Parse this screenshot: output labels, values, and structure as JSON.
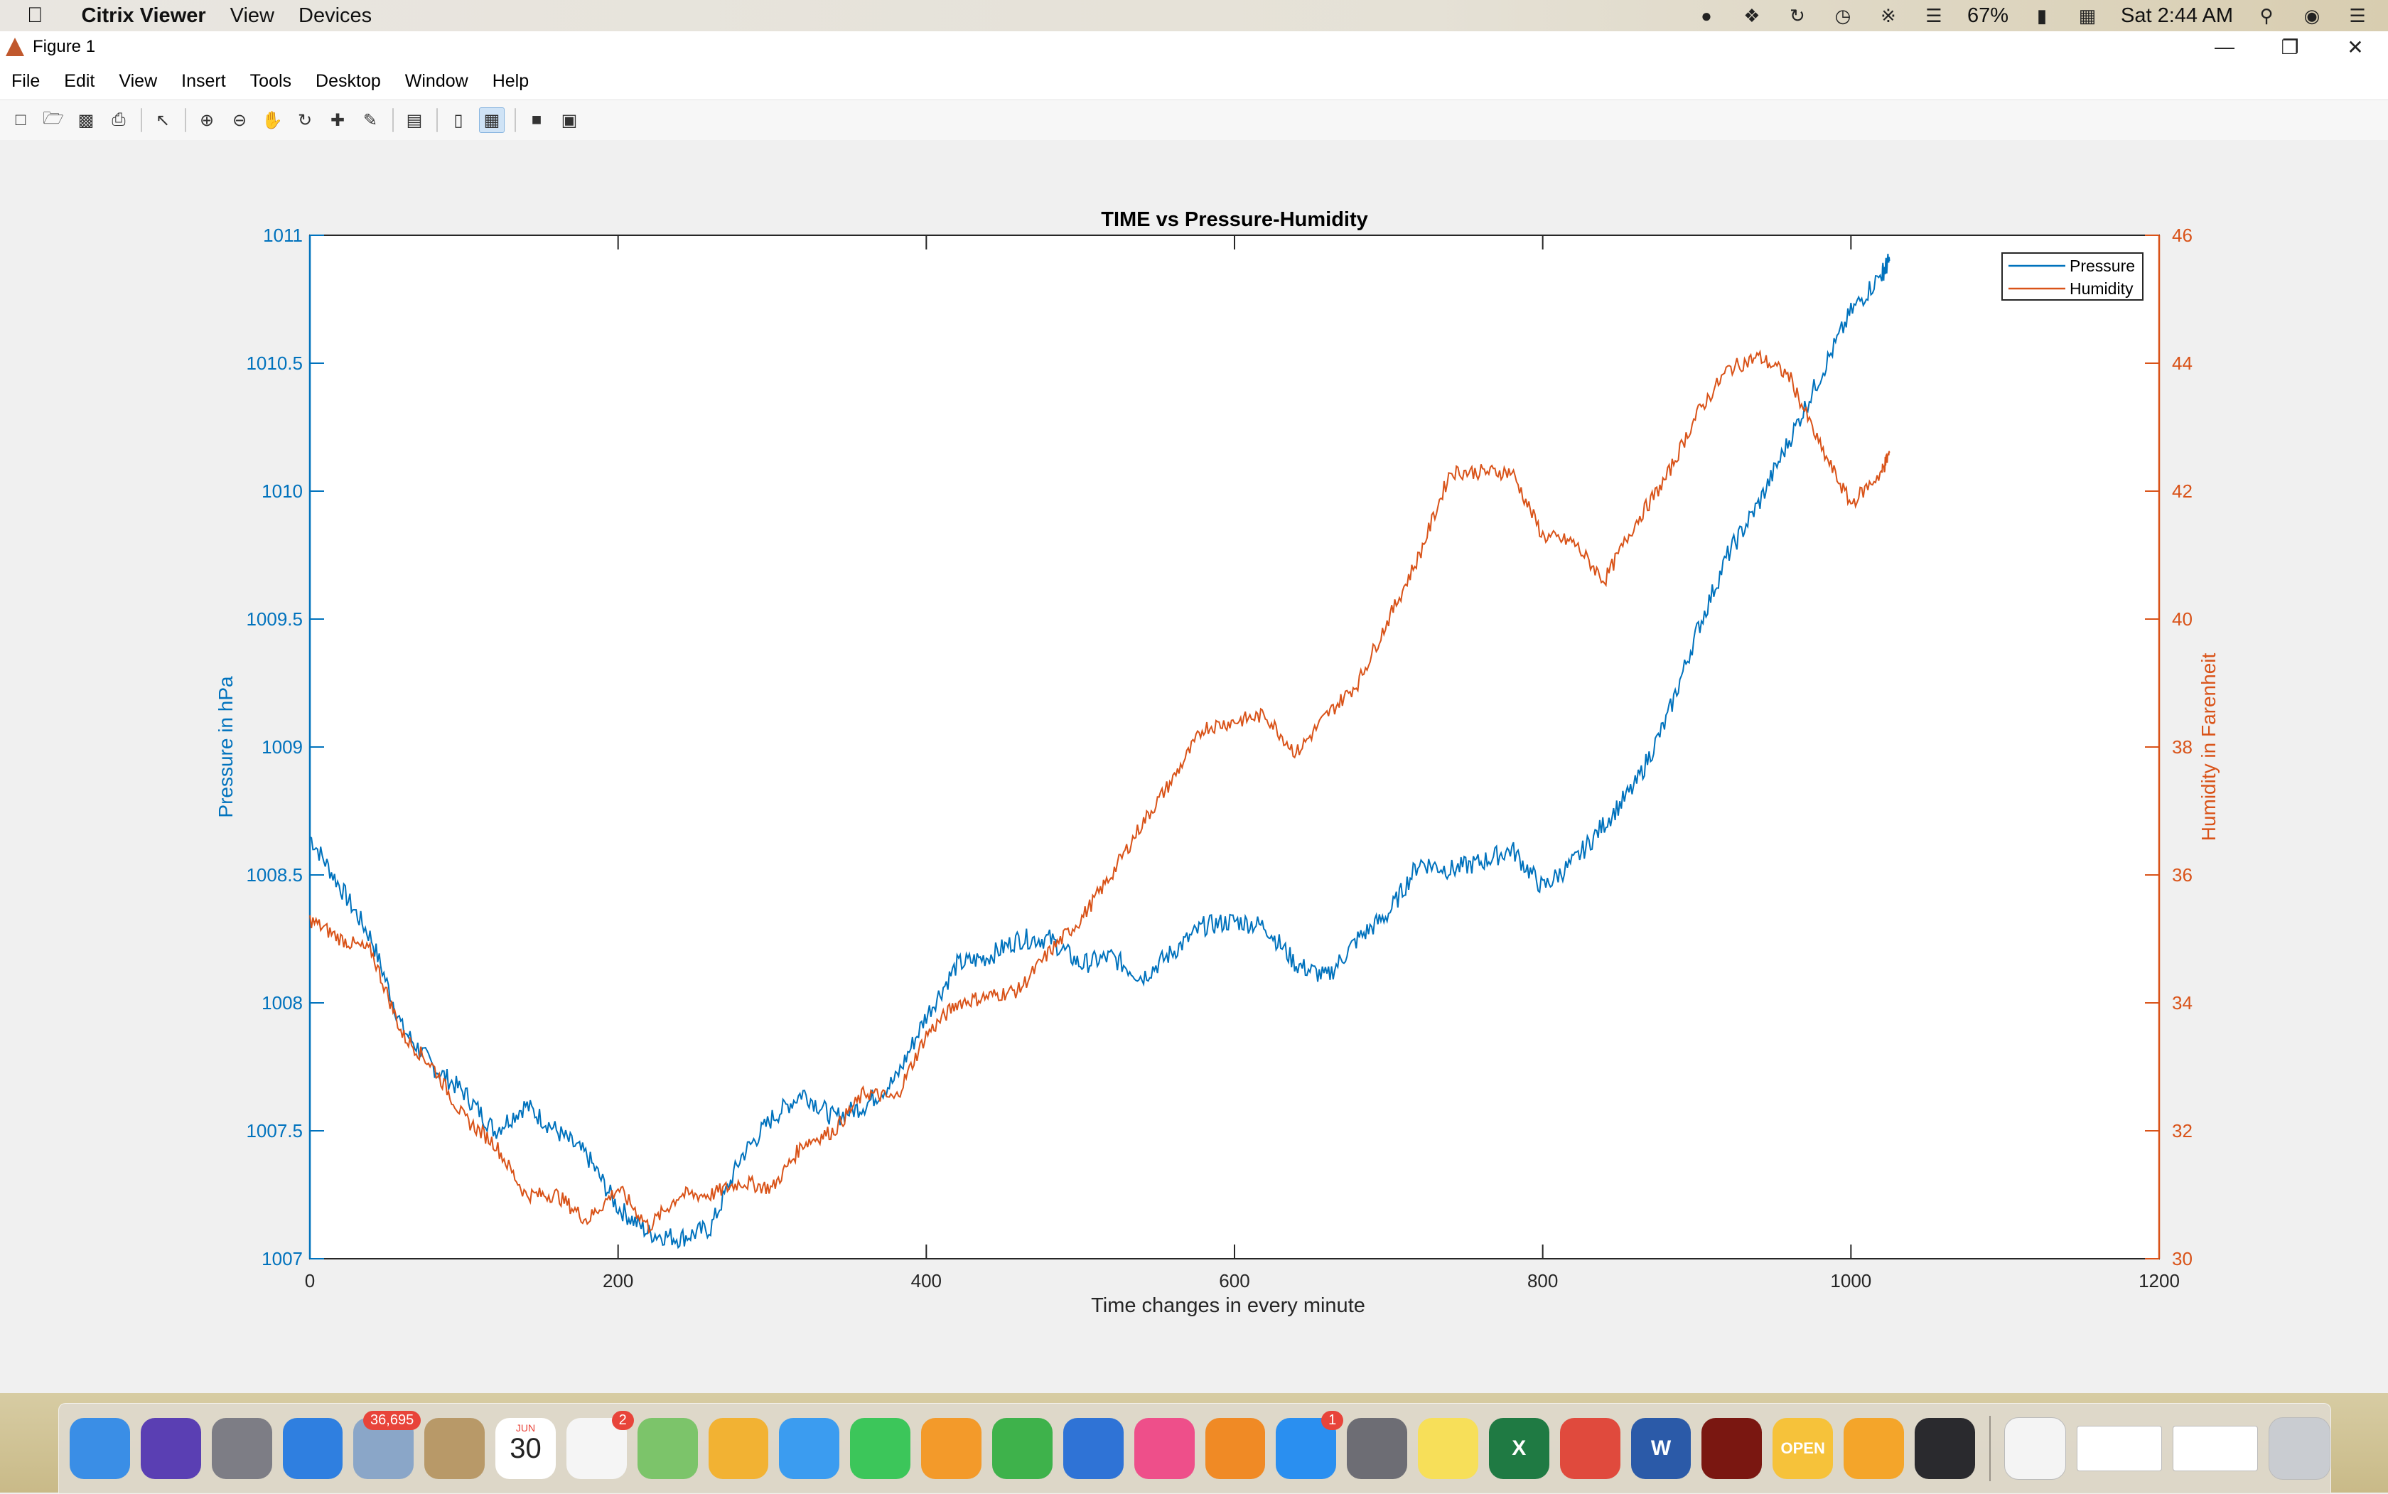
{
  "menubar": {
    "apple": "",
    "app_name": "Citrix Viewer",
    "items": [
      "View",
      "Devices"
    ],
    "battery": "67%",
    "clock": "Sat 2:44 AM",
    "status_icons": [
      "open-icon",
      "dropbox-icon",
      "swirl-icon",
      "time-machine-icon",
      "bluetooth-icon",
      "wifi-icon",
      "battery-icon",
      "calendar-icon",
      "search-icon",
      "siri-icon",
      "list-icon"
    ]
  },
  "window": {
    "title": "Figure 1",
    "controls": [
      "minimize",
      "restore",
      "close"
    ]
  },
  "figure_menu": [
    "File",
    "Edit",
    "View",
    "Insert",
    "Tools",
    "Desktop",
    "Window",
    "Help"
  ],
  "toolbar": [
    "new-figure-icon",
    "open-icon",
    "save-icon",
    "print-icon",
    "pointer-icon",
    "zoom-in-icon",
    "zoom-out-icon",
    "pan-icon",
    "rotate-icon",
    "data-cursor-icon",
    "brush-icon",
    "link-plot-icon",
    "colorbar-icon",
    "legend-icon",
    "hide-plot-tools-icon",
    "show-plot-tools-icon"
  ],
  "chart_data": {
    "type": "line",
    "title": "TIME vs Pressure-Humidity",
    "xlabel": "Time changes in every minute",
    "ylabel_left": "Pressure in hPa",
    "ylabel_right": "Humidity in Farenheit",
    "xlim": [
      0,
      1200
    ],
    "ylim_left": [
      1007,
      1011
    ],
    "ylim_right": [
      30,
      46
    ],
    "xticks": [
      "0",
      "200",
      "400",
      "600",
      "800",
      "1000",
      "1200"
    ],
    "yticks_left": [
      "1007",
      "1007.5",
      "1008",
      "1008.5",
      "1009",
      "1009.5",
      "1010",
      "1010.5",
      "1011"
    ],
    "yticks_right": [
      "30",
      "32",
      "34",
      "36",
      "38",
      "40",
      "42",
      "44",
      "46"
    ],
    "legend_position": "top-right",
    "colors": {
      "pressure": "#0072bd",
      "humidity": "#d95319"
    },
    "series": [
      {
        "name": "Pressure",
        "axis": "left",
        "x": [
          0,
          20,
          40,
          60,
          80,
          100,
          120,
          140,
          160,
          180,
          200,
          220,
          240,
          260,
          280,
          300,
          320,
          340,
          360,
          380,
          400,
          420,
          440,
          460,
          480,
          500,
          520,
          540,
          560,
          580,
          600,
          620,
          640,
          660,
          680,
          700,
          720,
          740,
          760,
          780,
          800,
          820,
          840,
          860,
          880,
          900,
          920,
          940,
          960,
          980,
          1000,
          1020,
          1025
        ],
        "values": [
          1008.65,
          1008.45,
          1008.25,
          1007.9,
          1007.75,
          1007.65,
          1007.5,
          1007.6,
          1007.5,
          1007.4,
          1007.2,
          1007.1,
          1007.08,
          1007.12,
          1007.4,
          1007.55,
          1007.65,
          1007.55,
          1007.6,
          1007.7,
          1007.95,
          1008.15,
          1008.18,
          1008.25,
          1008.25,
          1008.15,
          1008.18,
          1008.1,
          1008.2,
          1008.3,
          1008.32,
          1008.3,
          1008.15,
          1008.1,
          1008.25,
          1008.35,
          1008.55,
          1008.52,
          1008.55,
          1008.6,
          1008.45,
          1008.55,
          1008.7,
          1008.85,
          1009.1,
          1009.45,
          1009.75,
          1009.95,
          1010.2,
          1010.45,
          1010.7,
          1010.85,
          1010.9
        ]
      },
      {
        "name": "Humidity",
        "axis": "right",
        "x": [
          0,
          20,
          40,
          60,
          80,
          100,
          120,
          140,
          160,
          180,
          200,
          220,
          240,
          260,
          280,
          300,
          320,
          340,
          360,
          380,
          400,
          420,
          440,
          460,
          480,
          500,
          520,
          540,
          560,
          580,
          600,
          620,
          640,
          660,
          680,
          700,
          720,
          740,
          760,
          780,
          800,
          820,
          840,
          860,
          880,
          900,
          920,
          940,
          960,
          980,
          1000,
          1020,
          1025
        ],
        "values": [
          35.3,
          35.0,
          34.8,
          33.5,
          33.0,
          32.2,
          31.8,
          31.0,
          31.0,
          30.6,
          31.1,
          30.5,
          31.0,
          31.0,
          31.2,
          31.1,
          31.8,
          32.0,
          32.6,
          32.5,
          33.5,
          34.0,
          34.1,
          34.2,
          34.8,
          35.3,
          36.0,
          36.8,
          37.5,
          38.3,
          38.4,
          38.5,
          37.9,
          38.5,
          39.0,
          40.0,
          41.0,
          42.3,
          42.3,
          42.3,
          41.3,
          41.2,
          40.6,
          41.5,
          42.2,
          43.2,
          43.9,
          44.1,
          43.8,
          42.7,
          41.8,
          42.3,
          42.6
        ]
      }
    ]
  },
  "dock": {
    "apps": [
      {
        "name": "finder-icon",
        "label": "",
        "color": "#3a8ee6"
      },
      {
        "name": "siri-icon",
        "label": "",
        "color": "#5a3fb3"
      },
      {
        "name": "launchpad-icon",
        "label": "",
        "color": "#7d7d85"
      },
      {
        "name": "safari-icon",
        "label": "",
        "color": "#2f7fe0"
      },
      {
        "name": "mail-icon",
        "label": "",
        "color": "#8aa6c8",
        "badge": "36,695"
      },
      {
        "name": "contacts-icon",
        "label": "",
        "color": "#b89968"
      },
      {
        "name": "calendar-icon",
        "label": "30",
        "color": "#ffffff",
        "sub": "JUN"
      },
      {
        "name": "reminders-icon",
        "label": "",
        "color": "#f5f5f5",
        "badge": "2"
      },
      {
        "name": "maps-icon",
        "label": "",
        "color": "#7cc46a"
      },
      {
        "name": "photos-icon",
        "label": "",
        "color": "#f2b233"
      },
      {
        "name": "messages-icon",
        "label": "",
        "color": "#3b9cf0"
      },
      {
        "name": "facetime-icon",
        "label": "",
        "color": "#3cc65a"
      },
      {
        "name": "pages-icon",
        "label": "",
        "color": "#f39a2a"
      },
      {
        "name": "numbers-icon",
        "label": "",
        "color": "#3eb24b"
      },
      {
        "name": "keynote-icon",
        "label": "",
        "color": "#2f73d6"
      },
      {
        "name": "itunes-icon",
        "label": "",
        "color": "#ee4f8a"
      },
      {
        "name": "ibooks-icon",
        "label": "",
        "color": "#f08a25"
      },
      {
        "name": "app-store-icon",
        "label": "",
        "color": "#2a8ff0",
        "badge": "1"
      },
      {
        "name": "system-preferences-icon",
        "label": "",
        "color": "#6d6d74"
      },
      {
        "name": "notes-icon",
        "label": "",
        "color": "#f7df59"
      },
      {
        "name": "excel-icon",
        "label": "X",
        "color": "#1f7a43"
      },
      {
        "name": "chrome-icon",
        "label": "",
        "color": "#e04a3d"
      },
      {
        "name": "word-icon",
        "label": "W",
        "color": "#2b5aa8"
      },
      {
        "name": "acrobat-icon",
        "label": "",
        "color": "#7a1711"
      },
      {
        "name": "open-app-icon",
        "label": "OPEN",
        "color": "#f6c23a"
      },
      {
        "name": "matlab-icon",
        "label": "",
        "color": "#f4a52a"
      },
      {
        "name": "istat-icon",
        "label": "",
        "color": "#2a2a2e"
      }
    ],
    "right": [
      "document-stack-icon",
      "window-thumb-1",
      "window-thumb-2",
      "trash-icon"
    ]
  }
}
